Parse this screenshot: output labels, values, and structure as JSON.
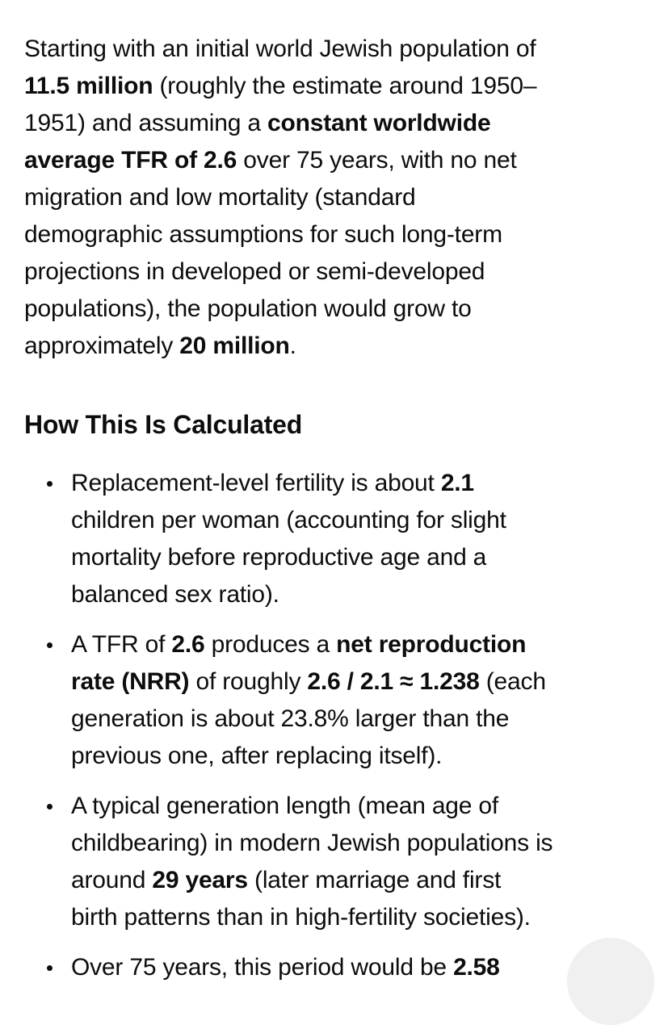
{
  "page": {
    "background": "#ffffff",
    "text_color": "#0d0d0d",
    "scroll_button_color": "#f0f0f0"
  },
  "content": {
    "intro_paragraph": {
      "lines": [
        [
          {
            "t": "Starting with an initial world Jewish population of",
            "b": false
          }
        ],
        [
          {
            "t": "11.5 million",
            "b": true
          },
          {
            "t": " (roughly the estimate around 1950–",
            "b": false
          }
        ],
        [
          {
            "t": "1951) and assuming a ",
            "b": false
          },
          {
            "t": "constant worldwide",
            "b": true
          }
        ],
        [
          {
            "t": "average TFR of 2.6",
            "b": true
          },
          {
            "t": " over 75 years, with no net",
            "b": false
          }
        ],
        [
          {
            "t": "migration and low mortality (standard",
            "b": false
          }
        ],
        [
          {
            "t": "demographic assumptions for such long-term",
            "b": false
          }
        ],
        [
          {
            "t": "projections in developed or semi-developed",
            "b": false
          }
        ],
        [
          {
            "t": "populations), the population would grow to",
            "b": false
          }
        ],
        [
          {
            "t": "approximately ",
            "b": false
          },
          {
            "t": "20 million",
            "b": true
          },
          {
            "t": ".",
            "b": false
          }
        ]
      ]
    },
    "section_heading": "How This Is Calculated",
    "bullets": [
      {
        "lines": [
          [
            {
              "t": "Replacement-level fertility is about ",
              "b": false
            },
            {
              "t": "2.1",
              "b": true
            }
          ],
          [
            {
              "t": "children per woman (accounting for slight",
              "b": false
            }
          ],
          [
            {
              "t": "mortality before reproductive age and a",
              "b": false
            }
          ],
          [
            {
              "t": "balanced sex ratio).",
              "b": false
            }
          ]
        ]
      },
      {
        "lines": [
          [
            {
              "t": "A TFR of ",
              "b": false
            },
            {
              "t": "2.6",
              "b": true
            },
            {
              "t": " produces a ",
              "b": false
            },
            {
              "t": "net reproduction",
              "b": true
            }
          ],
          [
            {
              "t": "rate (NRR)",
              "b": true
            },
            {
              "t": " of roughly ",
              "b": false
            },
            {
              "t": "2.6 / 2.1 ≈ 1.238",
              "b": true
            },
            {
              "t": " (each",
              "b": false
            }
          ],
          [
            {
              "t": "generation is about 23.8% larger than the",
              "b": false
            }
          ],
          [
            {
              "t": "previous one, after replacing itself).",
              "b": false
            }
          ]
        ]
      },
      {
        "lines": [
          [
            {
              "t": "A typical generation length (mean age of",
              "b": false
            }
          ],
          [
            {
              "t": "childbearing) in modern Jewish populations is",
              "b": false
            }
          ],
          [
            {
              "t": "around ",
              "b": false
            },
            {
              "t": "29 years",
              "b": true
            },
            {
              "t": " (later marriage and first",
              "b": false
            }
          ],
          [
            {
              "t": "birth patterns than in high-fertility societies).",
              "b": false
            }
          ]
        ]
      },
      {
        "lines": [
          [
            {
              "t": "Over 75 years, this period would be ",
              "b": false
            },
            {
              "t": "2.58",
              "b": true
            }
          ]
        ]
      }
    ]
  }
}
